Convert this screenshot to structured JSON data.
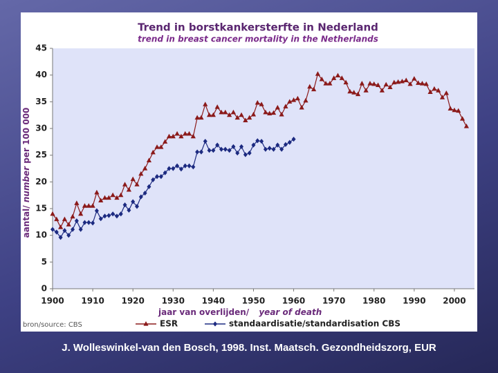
{
  "chart_data": {
    "type": "line",
    "title": "Trend in borstkankersterfte in Nederland",
    "subtitle": "trend in breast cancer mortality in the Netherlands",
    "y_label": {
      "part1": "aantal/",
      "part2": "number",
      "part3": "per 100 000"
    },
    "x_label": {
      "part1": "jaar van overlijden/",
      "part2": "year of death"
    },
    "source": "bron/source: CBS",
    "footer": "J. Wolleswinkel-van den Bosch, 1998. Inst. Maatsch. Gezondheidszorg, EUR",
    "xlim": [
      1900,
      2005
    ],
    "ylim": [
      0,
      45
    ],
    "xticks": [
      1900,
      1910,
      1920,
      1930,
      1940,
      1950,
      1960,
      1970,
      1980,
      1990,
      2000
    ],
    "yticks": [
      0,
      5,
      10,
      15,
      20,
      25,
      30,
      35,
      40,
      45
    ],
    "series": [
      {
        "name": "ESR",
        "color": "#8b1a1a",
        "marker": "triangle",
        "x": [
          1900,
          1901,
          1902,
          1903,
          1904,
          1905,
          1906,
          1907,
          1908,
          1909,
          1910,
          1911,
          1912,
          1913,
          1914,
          1915,
          1916,
          1917,
          1918,
          1919,
          1920,
          1921,
          1922,
          1923,
          1924,
          1925,
          1926,
          1927,
          1928,
          1929,
          1930,
          1931,
          1932,
          1933,
          1934,
          1935,
          1936,
          1937,
          1938,
          1939,
          1940,
          1941,
          1942,
          1943,
          1944,
          1945,
          1946,
          1947,
          1948,
          1949,
          1950,
          1951,
          1952,
          1953,
          1954,
          1955,
          1956,
          1957,
          1958,
          1959,
          1960,
          1961,
          1962,
          1963,
          1964,
          1965,
          1966,
          1967,
          1968,
          1969,
          1970,
          1971,
          1972,
          1973,
          1974,
          1975,
          1976,
          1977,
          1978,
          1979,
          1980,
          1981,
          1982,
          1983,
          1984,
          1985,
          1986,
          1987,
          1988,
          1989,
          1990,
          1991,
          1992,
          1993,
          1994,
          1995,
          1996,
          1997,
          1998,
          1999,
          2000,
          2001,
          2002,
          2003
        ],
        "values": [
          14,
          13,
          11.5,
          13,
          12,
          13.5,
          16,
          14,
          15.5,
          15.5,
          15.5,
          18,
          16.5,
          17,
          17,
          17.5,
          17,
          17.5,
          19.5,
          18.5,
          20.5,
          19.5,
          21.5,
          22.5,
          24,
          25.5,
          26.5,
          26.5,
          27.5,
          28.5,
          28.5,
          29,
          28.5,
          29,
          29,
          28.5,
          32,
          32,
          34.5,
          32.5,
          32.5,
          34,
          33,
          33,
          32.5,
          33,
          32,
          32.5,
          31.5,
          32,
          32.6,
          34.8,
          34.5,
          33,
          32.8,
          32.9,
          33.9,
          32.6,
          34.1,
          35,
          35.3,
          35.6,
          33.9,
          35.2,
          37.8,
          37.3,
          40.2,
          39.2,
          38.4,
          38.4,
          39.4,
          39.9,
          39.4,
          38.6,
          36.9,
          36.7,
          36.4,
          38.4,
          37.1,
          38.4,
          38.3,
          38.1,
          37.1,
          38.2,
          37.7,
          38.6,
          38.7,
          38.8,
          39,
          38.3,
          39.3,
          38.5,
          38.4,
          38.3,
          36.8,
          37.4,
          37.1,
          35.8,
          36.6,
          33.7,
          33.4,
          33.3,
          31.8,
          30.4
        ]
      },
      {
        "name": "standaardisatie/standardisation CBS",
        "color": "#1c2a80",
        "marker": "diamond",
        "x": [
          1900,
          1901,
          1902,
          1903,
          1904,
          1905,
          1906,
          1907,
          1908,
          1909,
          1910,
          1911,
          1912,
          1913,
          1914,
          1915,
          1916,
          1917,
          1918,
          1919,
          1920,
          1921,
          1922,
          1923,
          1924,
          1925,
          1926,
          1927,
          1928,
          1929,
          1930,
          1931,
          1932,
          1933,
          1934,
          1935,
          1936,
          1937,
          1938,
          1939,
          1940,
          1941,
          1942,
          1943,
          1944,
          1945,
          1946,
          1947,
          1948,
          1949,
          1950,
          1951,
          1952,
          1953,
          1954,
          1955,
          1956,
          1957,
          1958,
          1959,
          1960
        ],
        "values": [
          11.1,
          10.6,
          9.6,
          10.9,
          10,
          11.1,
          12.7,
          11.1,
          12.4,
          12.4,
          12.3,
          14.6,
          13.1,
          13.6,
          13.7,
          14,
          13.6,
          14,
          15.7,
          14.7,
          16.3,
          15.4,
          17.2,
          17.9,
          19.1,
          20.4,
          21,
          21,
          21.7,
          22.5,
          22.5,
          23,
          22.4,
          23,
          23,
          22.8,
          25.6,
          25.6,
          27.6,
          25.9,
          25.9,
          26.9,
          26.1,
          26.1,
          25.9,
          26.6,
          25.4,
          26.6,
          25.1,
          25.4,
          26.9,
          27.7,
          27.6,
          26.1,
          26.3,
          26.1,
          26.9,
          26.1,
          27,
          27.4,
          28
        ]
      }
    ]
  }
}
